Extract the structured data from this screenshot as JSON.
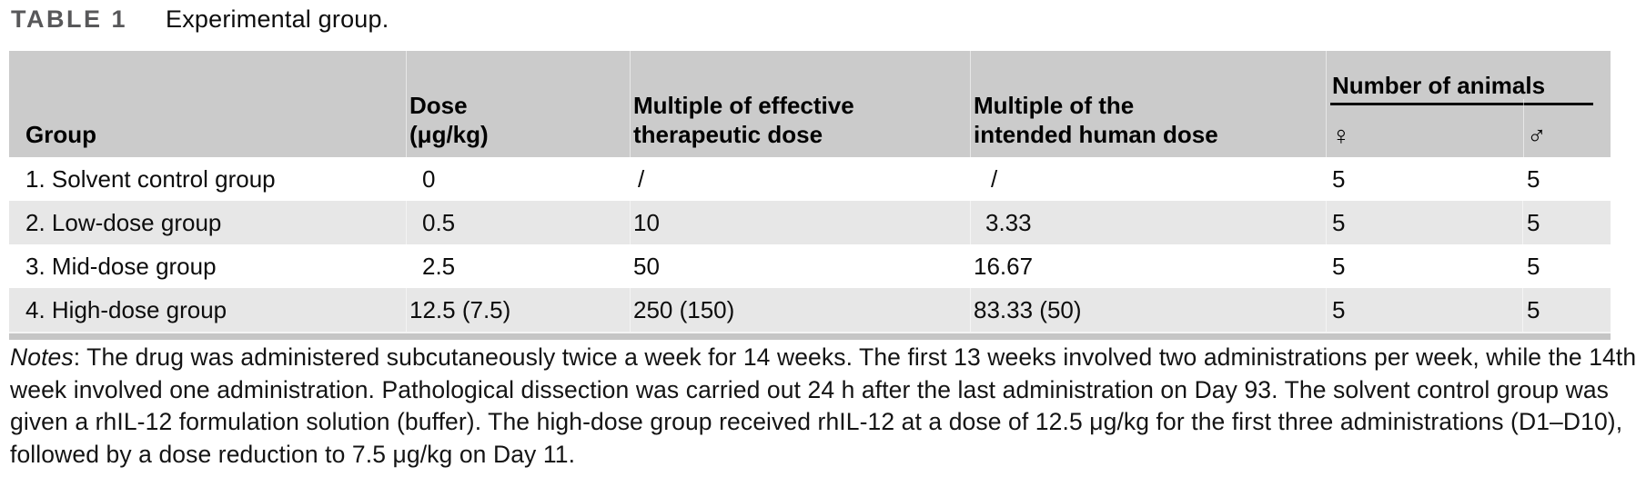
{
  "title": {
    "label": "TABLE 1",
    "caption": "Experimental group."
  },
  "colors": {
    "header_bg": "#cbcbcb",
    "row_alt_bg": "#e7e7e7",
    "bottom_bar": "#c5c5c5",
    "title_label": "#58585a"
  },
  "table": {
    "headers": {
      "group": "Group",
      "dose_line1": "Dose",
      "dose_line2": "(μg/kg)",
      "mult_effective_line1": "Multiple of effective",
      "mult_effective_line2": "therapeutic dose",
      "mult_human_line1": "Multiple of the",
      "mult_human_line2": "intended human dose",
      "animals_group": "Number of animals",
      "female_symbol": "♀",
      "male_symbol": "♂"
    },
    "rows": [
      {
        "group": "1. Solvent control group",
        "dose": "0",
        "mult_effective": "/",
        "mult_human": "/",
        "female": "5",
        "male": "5"
      },
      {
        "group": "2. Low-dose group",
        "dose": "0.5",
        "mult_effective": "10",
        "mult_human": "3.33",
        "female": "5",
        "male": "5"
      },
      {
        "group": "3. Mid-dose group",
        "dose": "2.5",
        "mult_effective": "50",
        "mult_human": "16.67",
        "female": "5",
        "male": "5"
      },
      {
        "group": "4. High-dose group",
        "dose": "12.5 (7.5)",
        "mult_effective": "250 (150)",
        "mult_human": "83.33 (50)",
        "female": "5",
        "male": "5"
      }
    ]
  },
  "notes": {
    "label": "Notes",
    "lines": [
      ": The drug was administered subcutaneously twice a week for 14 weeks. The first 13 weeks involved two administrations per week, while the 14th",
      "week involved one administration. Pathological dissection was carried out 24 h after the last administration on Day 93. The solvent control group was",
      "given a rhIL-12 formulation solution (buffer). The high-dose group received rhIL-12 at a dose of 12.5 μg/kg for the first three administrations (D1–D10),",
      "followed by a dose reduction to 7.5 μg/kg on Day 11."
    ]
  }
}
